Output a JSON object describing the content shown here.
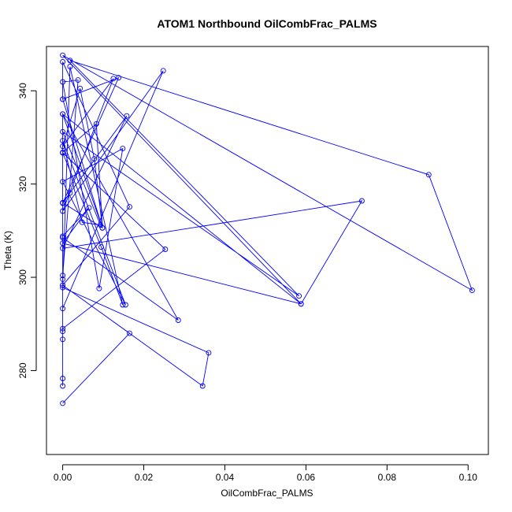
{
  "chart_data": {
    "type": "line",
    "title": "ATOM1 Northbound OilCombFrac_PALMS",
    "xlabel": "OilCombFrac_PALMS",
    "ylabel": "Theta (K)",
    "xlim": [
      -0.004,
      0.105
    ],
    "ylim": [
      262,
      349.5
    ],
    "xticks": [
      0.0,
      0.02,
      0.04,
      0.06,
      0.08,
      0.1
    ],
    "xtick_labels": [
      "0.00",
      "0.02",
      "0.04",
      "0.06",
      "0.08",
      "0.10"
    ],
    "yticks": [
      280,
      300,
      320,
      340
    ],
    "ytick_labels": [
      "280",
      "300",
      "320",
      "340"
    ],
    "grid": false,
    "legend": "none",
    "series_color": "#0000ff",
    "markers": "open-circle",
    "series": [
      {
        "x": [
          0.0,
          0.0,
          0.0,
          0.0,
          0.0,
          0.0165,
          0.0,
          0.0,
          0.0,
          0.0,
          0.0,
          0.0,
          0.0,
          0.0,
          0.0,
          0.0,
          0.0,
          0.0,
          0.0,
          0.0,
          0.0,
          0.0,
          0.0,
          0.0,
          0.0,
          0.0,
          0.0,
          0.0,
          0.0,
          0.0,
          0.0,
          0.0,
          0.0,
          0.0,
          0.0,
          0.0,
          0.0,
          0.0,
          0.0,
          0.0,
          0.0,
          0.0,
          0.0,
          0.0,
          0.0,
          0.0,
          0.0,
          0.0,
          0.0,
          0.0,
          0.0,
          0.0,
          0.0,
          0.0,
          0.0,
          0.0,
          0.0,
          0.0,
          0.0
        ],
        "y": [
          273.0,
          276.7,
          277.8,
          278.3,
          286.7,
          288.0,
          288.4,
          289.0,
          293.2,
          297.8,
          298.5,
          299.6,
          300.5,
          306.2,
          307.3,
          308.5,
          308.8,
          314.2,
          315.1,
          316.0,
          320.2,
          326.7,
          328.3,
          331.2,
          335.1,
          338.4,
          341.9,
          345.1,
          346.2,
          347.6,
          346.0,
          340.0,
          333.0,
          327.0,
          321.0,
          316.0,
          309.0,
          302.0,
          296.0,
          291.0,
          286.0,
          281.0,
          278.0,
          283.0,
          290.0,
          298.0,
          305.0,
          312.0,
          318.0,
          324.0,
          330.0,
          336.0,
          342.0,
          345.0,
          339.0,
          332.0,
          325.0,
          318.0,
          310.0
        ]
      },
      {
        "x": [
          0.0,
          0.0165,
          0.0,
          0.0345,
          0.036,
          0.0,
          0.0,
          0.0285,
          0.0,
          0.0,
          0.0253,
          0.0,
          0.0,
          0.0148,
          0.0,
          0.0,
          0.0165,
          0.0,
          0.0018,
          0.0125,
          0.0,
          0.0,
          0.0078,
          0.0,
          0.0,
          0.0,
          0.0,
          0.0038,
          0.0,
          0.0098,
          0.0,
          0.0,
          0.0148,
          0.0,
          0.0,
          0.0,
          0.0,
          0.0155,
          0.0,
          0.009,
          0.0,
          0.0,
          0.0,
          0.0098,
          0.0,
          0.0,
          0.0093,
          0.0,
          0.0,
          0.0,
          0.0018,
          0.0588,
          0.0,
          0.101,
          0.0,
          0.0583,
          0.0736,
          0.0,
          0.0903
        ],
        "y": [
          273.0,
          288.0,
          298.3,
          276.7,
          283.8,
          297.8,
          308.5,
          290.8,
          335.0,
          289.0,
          306.0,
          344.3,
          293.3,
          294.1,
          345.2,
          298.3,
          315.1,
          346.2,
          318.1,
          324.1,
          331.2,
          341.9,
          325.4,
          326.7,
          329.3,
          346.5,
          336.1,
          342.3,
          338.2,
          340.3,
          326.8,
          328.1,
          327.4,
          335.0,
          338.0,
          332.0,
          335.0,
          294.1,
          320.5,
          297.6,
          314.8,
          315.9,
          331.0,
          310.6,
          305.0,
          300.0,
          311.2,
          300.4,
          293.0,
          288.5,
          346.5,
          294.3,
          346.0,
          297.2,
          335.0,
          296.0,
          316.4,
          346.5,
          322.0
        ]
      }
    ],
    "polyline": [
      [
        0.0,
        273.0
      ],
      [
        0.0165,
        288.0
      ],
      [
        0.0,
        298.3
      ],
      [
        0.0345,
        276.7
      ],
      [
        0.036,
        283.8
      ],
      [
        0.0,
        297.8
      ],
      [
        0.0,
        308.5
      ],
      [
        0.0285,
        290.8
      ],
      [
        0.0,
        335.0
      ],
      [
        0.0,
        289.0
      ],
      [
        0.0253,
        306.0
      ],
      [
        0.0,
        326.7
      ],
      [
        0.0095,
        306.5
      ],
      [
        0.0148,
        294.1
      ],
      [
        0.0018,
        345.2
      ],
      [
        0.0,
        298.3
      ],
      [
        0.0165,
        315.1
      ],
      [
        0.0,
        346.2
      ],
      [
        0.0,
        338.2
      ],
      [
        0.0098,
        310.6
      ],
      [
        0.0,
        335.0
      ],
      [
        0.0588,
        294.3
      ],
      [
        0.0,
        347.6
      ],
      [
        0.101,
        297.2
      ],
      [
        0.0903,
        322.0
      ],
      [
        0.0018,
        346.5
      ],
      [
        0.0583,
        296.0
      ],
      [
        0.0,
        331.2
      ],
      [
        0.0093,
        311.2
      ],
      [
        0.0048,
        311.8
      ],
      [
        0.0,
        329.3
      ],
      [
        0.0155,
        294.1
      ],
      [
        0.0,
        320.5
      ],
      [
        0.0148,
        327.6
      ],
      [
        0.009,
        297.6
      ],
      [
        0.0,
        341.9
      ],
      [
        0.0038,
        342.3
      ],
      [
        0.0,
        300.4
      ],
      [
        0.0,
        293.3
      ],
      [
        0.0248,
        344.3
      ],
      [
        0.0,
        314.2
      ],
      [
        0.0125,
        342.6
      ],
      [
        0.0,
        328.1
      ],
      [
        0.0043,
        340.5
      ],
      [
        0.0078,
        325.4
      ],
      [
        0.0098,
        310.6
      ],
      [
        0.0,
        316.0
      ],
      [
        0.0158,
        334.6
      ],
      [
        0.0,
        306.2
      ],
      [
        0.0738,
        316.4
      ],
      [
        0.0588,
        294.3
      ],
      [
        0.0,
        307.3
      ],
      [
        0.0065,
        314.9
      ],
      [
        0.0,
        308.8
      ],
      [
        0.0,
        276.7
      ],
      [
        0.0,
        278.3
      ],
      [
        0.0,
        286.7
      ],
      [
        0.0,
        288.4
      ],
      [
        0.0,
        299.6
      ],
      [
        0.0,
        326.8
      ],
      [
        0.0083,
        332.9
      ],
      [
        0.0098,
        310.6
      ],
      [
        0.0,
        338.2
      ],
      [
        0.0138,
        342.8
      ],
      [
        0.0,
        315.9
      ],
      [
        0.0018,
        318.1
      ]
    ]
  }
}
